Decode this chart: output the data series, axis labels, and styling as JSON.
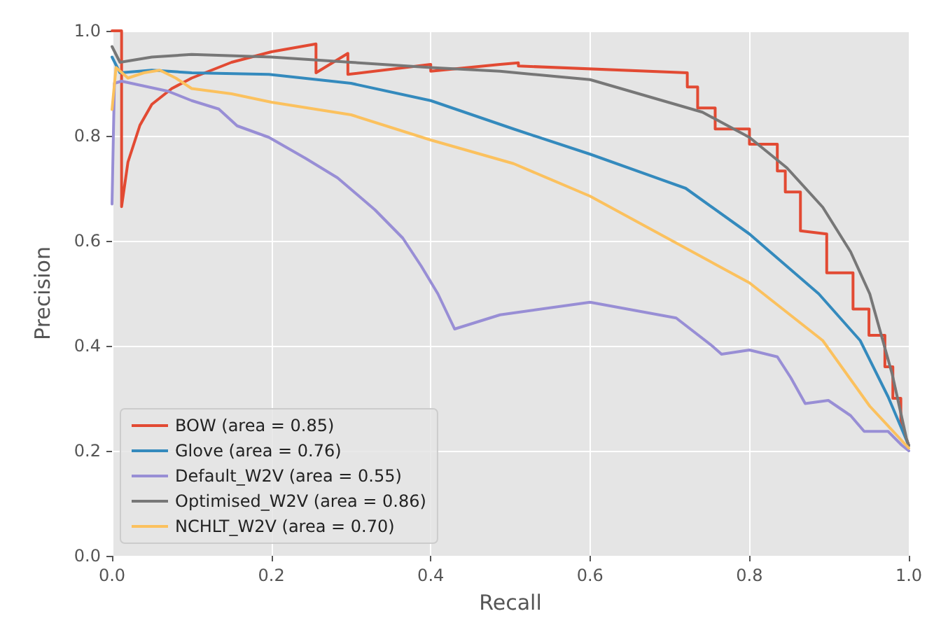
{
  "chart_data": {
    "type": "line",
    "xlabel": "Recall",
    "ylabel": "Precision",
    "xlim": [
      0,
      1
    ],
    "ylim": [
      0,
      1
    ],
    "xticks": [
      {
        "value": 0,
        "label": "0.0"
      },
      0.2,
      0.4,
      0.6,
      0.8,
      {
        "value": 1,
        "label": "1.0"
      }
    ],
    "yticks": [
      {
        "value": 0,
        "label": "0.0"
      },
      0.2,
      0.4,
      0.6,
      0.8,
      {
        "value": 1,
        "label": "1.0"
      }
    ],
    "grid": true,
    "legend": "bottom left",
    "marker": "none",
    "line_style": "solid",
    "series": [
      {
        "name": "BOW (area = 0.85)",
        "color": "#e24a33",
        "x": [
          0,
          0.012,
          0.012,
          0.02,
          0.035,
          0.05,
          0.075,
          0.1,
          0.15,
          0.2,
          0.256,
          0.256,
          0.296,
          0.296,
          0.4,
          0.4,
          0.487,
          0.51,
          0.51,
          0.722,
          0.722,
          0.735,
          0.735,
          0.757,
          0.757,
          0.8,
          0.8,
          0.835,
          0.835,
          0.845,
          0.845,
          0.864,
          0.864,
          0.897,
          0.897,
          0.93,
          0.93,
          0.95,
          0.95,
          0.97,
          0.97,
          0.98,
          0.98,
          0.99,
          0.99,
          1.0
        ],
        "values": [
          1.0,
          1.0,
          0.665,
          0.75,
          0.82,
          0.86,
          0.89,
          0.91,
          0.94,
          0.96,
          0.975,
          0.92,
          0.957,
          0.917,
          0.936,
          0.923,
          0.936,
          0.939,
          0.933,
          0.92,
          0.893,
          0.893,
          0.853,
          0.853,
          0.813,
          0.813,
          0.784,
          0.784,
          0.733,
          0.733,
          0.693,
          0.693,
          0.619,
          0.613,
          0.539,
          0.539,
          0.47,
          0.47,
          0.42,
          0.42,
          0.36,
          0.36,
          0.3,
          0.3,
          0.25,
          0.21
        ]
      },
      {
        "name": "Glove (area = 0.76)",
        "color": "#348abd",
        "x": [
          0,
          0.01,
          0.05,
          0.1,
          0.197,
          0.3,
          0.4,
          0.504,
          0.6,
          0.72,
          0.8,
          0.887,
          0.939,
          0.974,
          1.0
        ],
        "values": [
          0.95,
          0.92,
          0.925,
          0.92,
          0.917,
          0.9,
          0.867,
          0.813,
          0.765,
          0.7,
          0.613,
          0.499,
          0.41,
          0.303,
          0.21
        ]
      },
      {
        "name": "Default_W2V (area = 0.55)",
        "color": "#988ed5",
        "x": [
          0,
          0.003,
          0.012,
          0.07,
          0.1,
          0.134,
          0.157,
          0.197,
          0.243,
          0.283,
          0.33,
          0.365,
          0.388,
          0.409,
          0.43,
          0.487,
          0.6,
          0.708,
          0.753,
          0.765,
          0.8,
          0.835,
          0.852,
          0.87,
          0.899,
          0.927,
          0.944,
          0.974,
          0.991,
          1.0
        ],
        "values": [
          0.67,
          0.9,
          0.904,
          0.885,
          0.867,
          0.851,
          0.819,
          0.797,
          0.757,
          0.72,
          0.659,
          0.605,
          0.552,
          0.499,
          0.432,
          0.459,
          0.483,
          0.453,
          0.4,
          0.384,
          0.392,
          0.379,
          0.339,
          0.29,
          0.296,
          0.267,
          0.237,
          0.237,
          0.211,
          0.2
        ]
      },
      {
        "name": "Optimised_W2V (area = 0.86)",
        "color": "#777777",
        "x": [
          0,
          0.01,
          0.05,
          0.1,
          0.2,
          0.3,
          0.4,
          0.487,
          0.6,
          0.741,
          0.8,
          0.847,
          0.892,
          0.927,
          0.951,
          0.979,
          0.997,
          1.0
        ],
        "values": [
          0.97,
          0.94,
          0.95,
          0.955,
          0.95,
          0.94,
          0.93,
          0.923,
          0.907,
          0.845,
          0.797,
          0.739,
          0.664,
          0.579,
          0.499,
          0.347,
          0.224,
          0.21
        ]
      },
      {
        "name": "NCHLT_W2V (area = 0.70)",
        "color": "#fbc15e",
        "x": [
          0,
          0.005,
          0.02,
          0.04,
          0.06,
          0.08,
          0.1,
          0.15,
          0.2,
          0.3,
          0.4,
          0.504,
          0.6,
          0.8,
          0.892,
          0.951,
          1.0
        ],
        "values": [
          0.85,
          0.93,
          0.91,
          0.92,
          0.925,
          0.91,
          0.89,
          0.88,
          0.864,
          0.84,
          0.792,
          0.747,
          0.685,
          0.52,
          0.41,
          0.285,
          0.205
        ]
      }
    ]
  }
}
